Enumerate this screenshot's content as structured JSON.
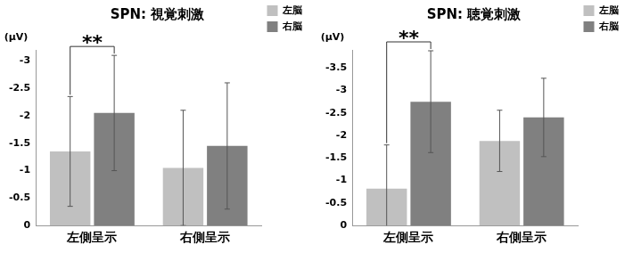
{
  "chart_data": [
    {
      "type": "bar",
      "title": "SPN: 視覚刺激",
      "y_label": "(μV)",
      "categories": [
        "左側呈示",
        "右側呈示"
      ],
      "series": [
        {
          "name": "左脳",
          "color": "#c0c0c0",
          "values": [
            -1.35,
            -1.05
          ],
          "errors": [
            1.0,
            1.05
          ]
        },
        {
          "name": "右脳",
          "color": "#808080",
          "values": [
            -2.05,
            -1.45
          ],
          "errors": [
            1.05,
            1.15
          ]
        }
      ],
      "ylim": [
        0,
        -3.2
      ],
      "yticks": [
        0,
        -0.5,
        -1,
        -1.5,
        -2,
        -2.5,
        -3
      ],
      "grid": false,
      "legend": "upper right",
      "annotations": [
        {
          "text": "**",
          "category": "左側呈示"
        }
      ]
    },
    {
      "type": "bar",
      "title": "SPN: 聴覚刺激",
      "y_label": "(μV)",
      "categories": [
        "左側呈示",
        "右側呈示"
      ],
      "series": [
        {
          "name": "左脳",
          "color": "#c0c0c0",
          "values": [
            -0.82,
            -1.88
          ],
          "errors": [
            0.97,
            0.68
          ]
        },
        {
          "name": "右脳",
          "color": "#808080",
          "values": [
            -2.75,
            -2.4
          ],
          "errors": [
            1.13,
            0.87
          ]
        }
      ],
      "ylim": [
        0,
        -3.9
      ],
      "yticks": [
        0,
        -0.5,
        -1,
        -1.5,
        -2,
        -2.5,
        -3,
        -3.5
      ],
      "grid": false,
      "legend": "upper right",
      "annotations": [
        {
          "text": "**",
          "category": "左側呈示"
        }
      ]
    }
  ]
}
